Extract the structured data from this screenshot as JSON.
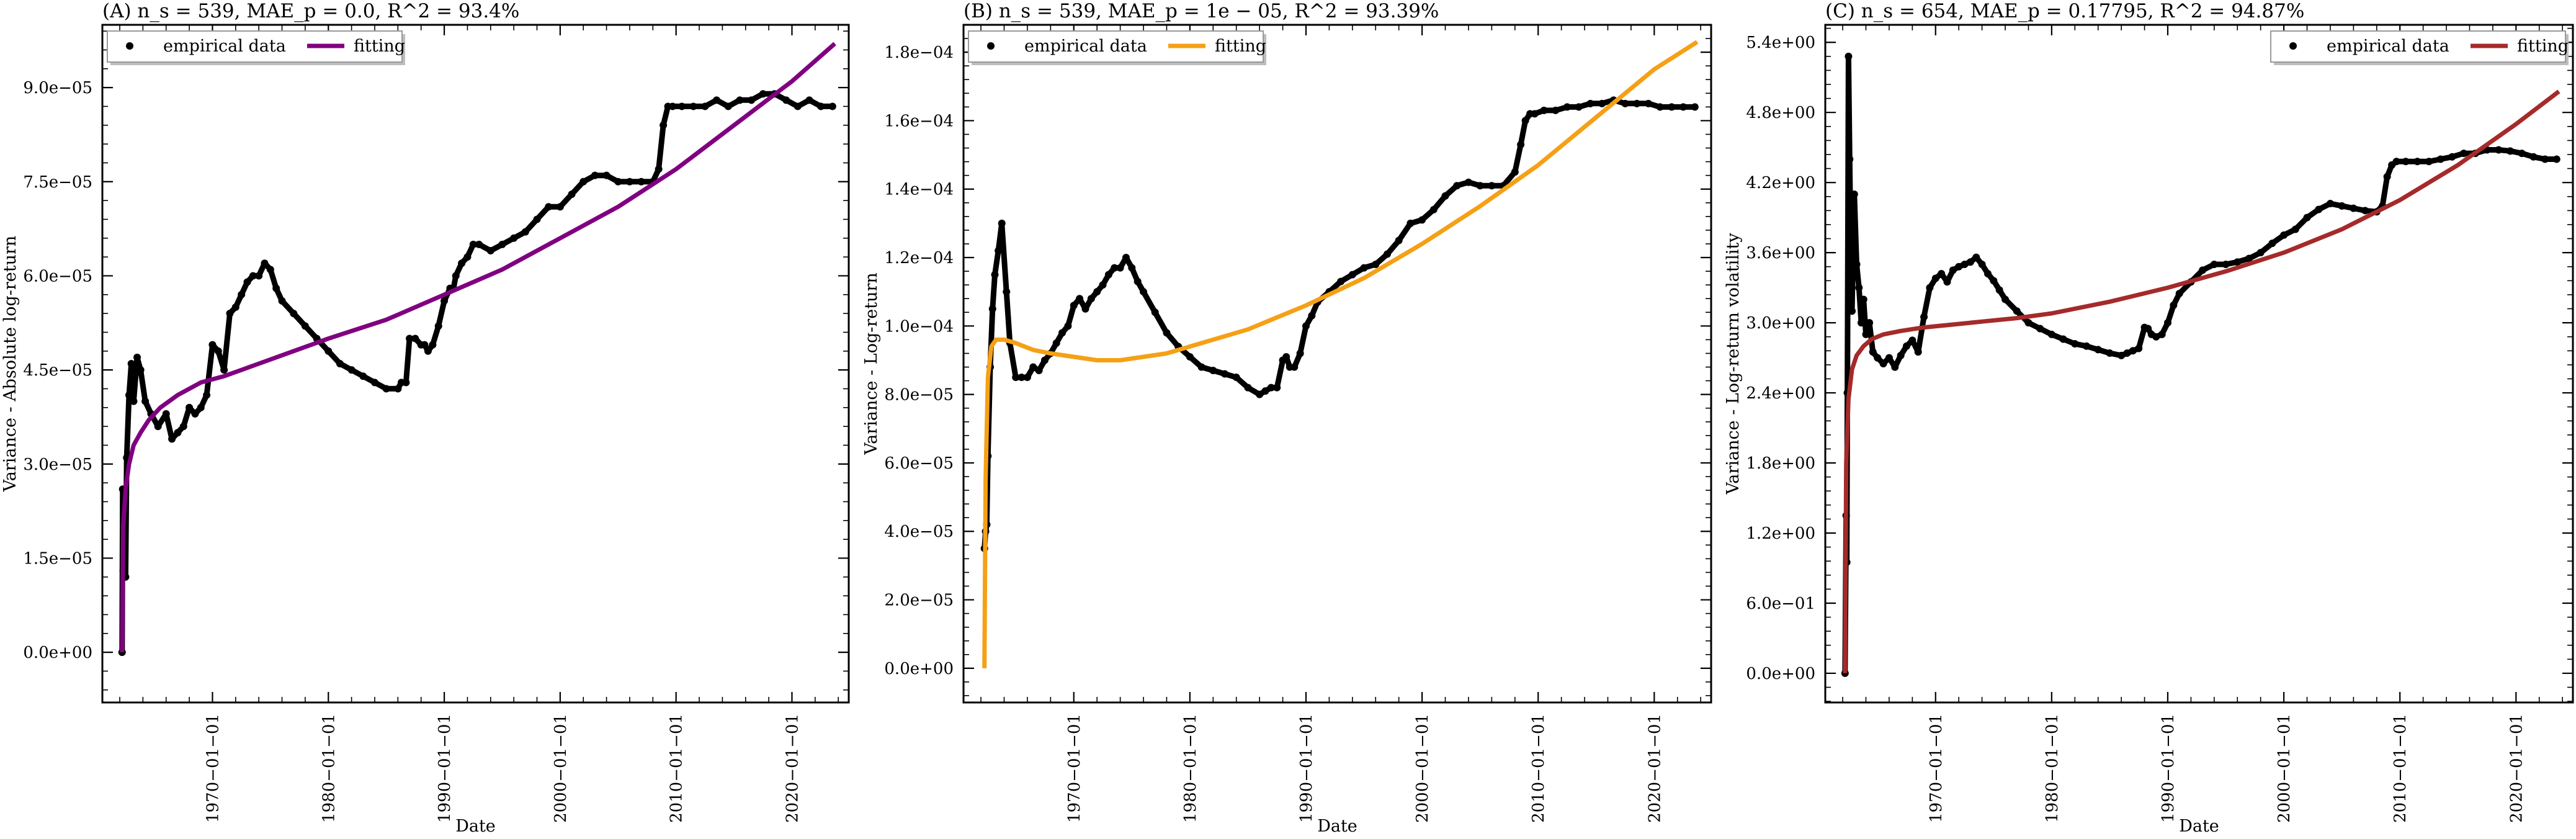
{
  "chart_data": [
    {
      "type": "scatter",
      "title": "(A) n_s = 539, MAE_p = 0.0, R^2 = 93.4%",
      "xlabel": "Date",
      "ylabel": "Variance - Absolute log-return",
      "xlim": [
        1960.5,
        2024.9
      ],
      "ylim": [
        -8e-06,
        0.0001
      ],
      "xticks": [
        1970,
        1980,
        1990,
        2000,
        2010,
        2020
      ],
      "xtick_labels": [
        "1970−01−01",
        "1980−01−01",
        "1990−01−01",
        "2000−01−01",
        "2010−01−01",
        "2020−01−01"
      ],
      "yticks": [
        0,
        1.5e-05,
        3e-05,
        4.5e-05,
        6e-05,
        7.5e-05,
        9e-05
      ],
      "ytick_labels": [
        "0.0e+00",
        "1.5e−05",
        "3.0e−05",
        "4.5e−05",
        "6.0e−05",
        "7.5e−05",
        "9.0e−05"
      ],
      "legend": {
        "position": "upper-left",
        "entries": [
          "empirical data",
          "fitting"
        ]
      },
      "fit_color": "#800080",
      "series": [
        {
          "name": "empirical data",
          "kind": "markers",
          "x": [
            1962.2,
            1962.25,
            1962.3,
            1962.4,
            1962.5,
            1962.6,
            1962.8,
            1963.0,
            1963.2,
            1963.5,
            1963.8,
            1964.2,
            1964.7,
            1965.3,
            1966.0,
            1966.5,
            1967.0,
            1967.5,
            1968.0,
            1968.5,
            1969.0,
            1969.5,
            1970.0,
            1970.5,
            1971.0,
            1971.5,
            1972.0,
            1972.5,
            1973.0,
            1973.5,
            1974.0,
            1974.5,
            1975.0,
            1975.5,
            1976.0,
            1977.0,
            1978.0,
            1979.0,
            1980.0,
            1981.0,
            1982.0,
            1983.0,
            1984.0,
            1985.0,
            1986.0,
            1986.3,
            1986.7,
            1987.0,
            1987.5,
            1988.0,
            1988.3,
            1988.6,
            1989.0,
            1989.5,
            1990.0,
            1990.5,
            1990.8,
            1991.0,
            1991.5,
            1992.0,
            1992.5,
            1993.0,
            1994.0,
            1995.0,
            1996.0,
            1997.0,
            1998.0,
            1999.0,
            2000.0,
            2001.0,
            2002.0,
            2003.0,
            2004.0,
            2005.0,
            2006.0,
            2007.0,
            2008.0,
            2008.5,
            2008.9,
            2009.3,
            2009.7,
            2010.5,
            2011.5,
            2012.5,
            2013.5,
            2014.5,
            2015.5,
            2016.5,
            2017.5,
            2018.5,
            2019.5,
            2020.5,
            2021.5,
            2022.5,
            2023.5
          ],
          "y": [
            0.0,
            2.6e-05,
            1.3e-05,
            2.2e-05,
            1.2e-05,
            3.1e-05,
            4.1e-05,
            4.6e-05,
            4e-05,
            4.7e-05,
            4.5e-05,
            4e-05,
            3.8e-05,
            3.6e-05,
            3.8e-05,
            3.4e-05,
            3.5e-05,
            3.6e-05,
            3.9e-05,
            3.8e-05,
            3.9e-05,
            4.1e-05,
            4.9e-05,
            4.8e-05,
            4.5e-05,
            5.4e-05,
            5.5e-05,
            5.7e-05,
            5.9e-05,
            6e-05,
            6e-05,
            6.2e-05,
            6.1e-05,
            5.8e-05,
            5.6e-05,
            5.4e-05,
            5.2e-05,
            5e-05,
            4.8e-05,
            4.6e-05,
            4.5e-05,
            4.4e-05,
            4.3e-05,
            4.2e-05,
            4.2e-05,
            4.3e-05,
            4.3e-05,
            5e-05,
            5e-05,
            4.9e-05,
            4.9e-05,
            4.8e-05,
            4.9e-05,
            5.2e-05,
            5.6e-05,
            5.8e-05,
            5.8e-05,
            6e-05,
            6.2e-05,
            6.3e-05,
            6.5e-05,
            6.5e-05,
            6.4e-05,
            6.5e-05,
            6.6e-05,
            6.7e-05,
            6.9e-05,
            7.1e-05,
            7.1e-05,
            7.3e-05,
            7.5e-05,
            7.6e-05,
            7.6e-05,
            7.5e-05,
            7.5e-05,
            7.5e-05,
            7.5e-05,
            7.7e-05,
            8.4e-05,
            8.7e-05,
            8.7e-05,
            8.7e-05,
            8.7e-05,
            8.7e-05,
            8.8e-05,
            8.7e-05,
            8.8e-05,
            8.8e-05,
            8.9e-05,
            8.9e-05,
            8.8e-05,
            8.7e-05,
            8.8e-05,
            8.7e-05,
            8.7e-05
          ]
        },
        {
          "name": "fitting",
          "kind": "line",
          "x": [
            1962.2,
            1962.3,
            1962.5,
            1962.8,
            1963.2,
            1963.8,
            1964.5,
            1965.5,
            1967.0,
            1969.0,
            1971.0,
            1974.0,
            1977.0,
            1980.0,
            1985.0,
            1990.0,
            1995.0,
            2000.0,
            2005.0,
            2010.0,
            2015.0,
            2020.0,
            2023.7
          ],
          "y": [
            0.0,
            2e-05,
            2.6e-05,
            3e-05,
            3.3e-05,
            3.5e-05,
            3.7e-05,
            3.9e-05,
            4.1e-05,
            4.3e-05,
            4.4e-05,
            4.6e-05,
            4.8e-05,
            5e-05,
            5.3e-05,
            5.7e-05,
            6.1e-05,
            6.6e-05,
            7.1e-05,
            7.7e-05,
            8.4e-05,
            9.1e-05,
            9.7e-05
          ]
        }
      ]
    },
    {
      "type": "scatter",
      "title": "(B) n_s = 539, MAE_p = 1e − 05, R^2 = 93.39%",
      "xlabel": "Date",
      "ylabel": "Variance - Log-return",
      "xlim": [
        1960.5,
        2024.9
      ],
      "ylim": [
        -1e-05,
        0.000188
      ],
      "xticks": [
        1970,
        1980,
        1990,
        2000,
        2010,
        2020
      ],
      "xtick_labels": [
        "1970−01−01",
        "1980−01−01",
        "1990−01−01",
        "2000−01−01",
        "2010−01−01",
        "2020−01−01"
      ],
      "yticks": [
        0,
        2e-05,
        4e-05,
        6e-05,
        8e-05,
        0.0001,
        0.00012,
        0.00014,
        0.00016,
        0.00018
      ],
      "ytick_labels": [
        "0.0e+00",
        "2.0e−05",
        "4.0e−05",
        "6.0e−05",
        "8.0e−05",
        "1.0e−04",
        "1.2e−04",
        "1.4e−04",
        "1.6e−04",
        "1.8e−04"
      ],
      "legend": {
        "position": "upper-left",
        "entries": [
          "empirical data",
          "fitting"
        ]
      },
      "fit_color": "#f5a015",
      "series": [
        {
          "name": "empirical data",
          "kind": "markers",
          "x": [
            1962.3,
            1962.4,
            1962.5,
            1962.6,
            1962.8,
            1963.0,
            1963.2,
            1963.5,
            1963.8,
            1964.2,
            1964.5,
            1965.0,
            1965.5,
            1966.0,
            1966.5,
            1967.0,
            1967.5,
            1968.0,
            1968.5,
            1969.0,
            1969.5,
            1970.0,
            1970.5,
            1971.0,
            1971.5,
            1972.0,
            1972.5,
            1973.0,
            1973.5,
            1974.0,
            1974.5,
            1975.0,
            1975.5,
            1976.0,
            1977.0,
            1978.0,
            1979.0,
            1980.0,
            1981.0,
            1982.0,
            1983.0,
            1984.0,
            1985.0,
            1986.0,
            1986.5,
            1987.0,
            1987.5,
            1988.0,
            1988.3,
            1988.6,
            1989.0,
            1989.5,
            1990.0,
            1990.5,
            1991.0,
            1992.0,
            1993.0,
            1994.0,
            1995.0,
            1996.0,
            1997.0,
            1998.0,
            1999.0,
            2000.0,
            2001.0,
            2002.0,
            2003.0,
            2004.0,
            2005.0,
            2006.0,
            2007.0,
            2008.0,
            2008.5,
            2008.9,
            2009.3,
            2009.7,
            2010.5,
            2011.5,
            2012.5,
            2013.5,
            2014.5,
            2015.5,
            2016.5,
            2017.5,
            2018.5,
            2019.5,
            2020.5,
            2021.5,
            2022.5,
            2023.5
          ],
          "y": [
            3.5e-05,
            4e-05,
            4.2e-05,
            6.2e-05,
            8.8e-05,
            0.000105,
            0.000115,
            0.000122,
            0.00013,
            0.00011,
            9.5e-05,
            8.5e-05,
            8.5e-05,
            8.5e-05,
            8.8e-05,
            8.7e-05,
            9e-05,
            9.2e-05,
            9.5e-05,
            9.8e-05,
            0.0001,
            0.000106,
            0.000108,
            0.000105,
            0.000108,
            0.00011,
            0.000112,
            0.000115,
            0.000117,
            0.000117,
            0.00012,
            0.000117,
            0.000113,
            0.00011,
            0.000104,
            9.8e-05,
            9.4e-05,
            9.1e-05,
            8.8e-05,
            8.7e-05,
            8.6e-05,
            8.5e-05,
            8.2e-05,
            8e-05,
            8.1e-05,
            8.2e-05,
            8.2e-05,
            9e-05,
            9.1e-05,
            8.8e-05,
            8.8e-05,
            9.2e-05,
            0.0001,
            0.000103,
            0.000107,
            0.00011,
            0.000113,
            0.000115,
            0.000117,
            0.000118,
            0.000121,
            0.000125,
            0.00013,
            0.000131,
            0.000134,
            0.000138,
            0.000141,
            0.000142,
            0.000141,
            0.000141,
            0.000141,
            0.000145,
            0.000153,
            0.00016,
            0.000162,
            0.000162,
            0.000163,
            0.000163,
            0.000164,
            0.000164,
            0.000165,
            0.000165,
            0.000166,
            0.000165,
            0.000165,
            0.000165,
            0.000164,
            0.000164,
            0.000164,
            0.000164
          ]
        },
        {
          "name": "fitting",
          "kind": "line",
          "x": [
            1962.3,
            1962.4,
            1962.6,
            1962.9,
            1963.3,
            1964.0,
            1965.0,
            1966.5,
            1968.0,
            1970.0,
            1972.0,
            1974.0,
            1976.0,
            1978.0,
            1980.0,
            1985.0,
            1990.0,
            1995.0,
            2000.0,
            2005.0,
            2010.0,
            2015.0,
            2020.0,
            2023.7
          ],
          "y": [
            0.0,
            5.5e-05,
            8.5e-05,
            9.4e-05,
            9.6e-05,
            9.6e-05,
            9.5e-05,
            9.3e-05,
            9.2e-05,
            9.1e-05,
            9e-05,
            9e-05,
            9.1e-05,
            9.2e-05,
            9.4e-05,
            9.9e-05,
            0.000106,
            0.000114,
            0.000124,
            0.000135,
            0.000147,
            0.000161,
            0.000175,
            0.000183
          ]
        }
      ]
    },
    {
      "type": "scatter",
      "title": "(C) n_s = 654, MAE_p = 0.17795, R^2 = 94.87%",
      "xlabel": "Date",
      "ylabel": "Variance - Log-return volatility",
      "xlim": [
        1960.5,
        2024.9
      ],
      "ylim": [
        -0.25,
        5.55
      ],
      "xticks": [
        1970,
        1980,
        1990,
        2000,
        2010,
        2020
      ],
      "xtick_labels": [
        "1970−01−01",
        "1980−01−01",
        "1990−01−01",
        "2000−01−01",
        "2010−01−01",
        "2020−01−01"
      ],
      "yticks": [
        0,
        0.6,
        1.2,
        1.8,
        2.4,
        3.0,
        3.6,
        4.2,
        4.8,
        5.4
      ],
      "ytick_labels": [
        "0.0e+00",
        "6.0e−01",
        "1.2e+00",
        "1.8e+00",
        "2.4e+00",
        "3.0e+00",
        "3.6e+00",
        "4.2e+00",
        "4.8e+00",
        "5.4e+00"
      ],
      "legend": {
        "position": "upper-right",
        "entries": [
          "empirical data",
          "fitting"
        ]
      },
      "fit_color": "#a52a2a",
      "series": [
        {
          "name": "empirical data",
          "kind": "markers",
          "x": [
            1962.2,
            1962.3,
            1962.35,
            1962.4,
            1962.5,
            1962.6,
            1962.7,
            1962.8,
            1963.0,
            1963.2,
            1963.4,
            1963.6,
            1963.8,
            1964.0,
            1964.3,
            1964.6,
            1965.0,
            1965.5,
            1966.0,
            1966.5,
            1967.0,
            1967.5,
            1968.0,
            1968.5,
            1969.0,
            1969.5,
            1970.0,
            1970.5,
            1971.0,
            1971.5,
            1972.0,
            1972.5,
            1973.0,
            1973.5,
            1974.0,
            1974.5,
            1975.0,
            1975.5,
            1976.0,
            1977.0,
            1978.0,
            1979.0,
            1980.0,
            1981.0,
            1982.0,
            1983.0,
            1984.0,
            1985.0,
            1986.0,
            1986.5,
            1987.0,
            1987.5,
            1988.0,
            1988.3,
            1988.6,
            1989.0,
            1989.5,
            1990.0,
            1990.5,
            1991.0,
            1992.0,
            1993.0,
            1994.0,
            1995.0,
            1996.0,
            1997.0,
            1998.0,
            1999.0,
            2000.0,
            2001.0,
            2002.0,
            2003.0,
            2004.0,
            2005.0,
            2006.0,
            2007.0,
            2008.0,
            2008.5,
            2008.9,
            2009.3,
            2009.7,
            2010.5,
            2011.5,
            2012.5,
            2013.5,
            2014.5,
            2015.5,
            2016.5,
            2017.5,
            2018.5,
            2019.5,
            2020.5,
            2021.5,
            2022.5,
            2023.5
          ],
          "y": [
            0.0,
            1.35,
            0.95,
            2.4,
            5.28,
            4.4,
            3.6,
            3.1,
            4.1,
            3.5,
            3.3,
            3.0,
            3.2,
            2.9,
            3.0,
            2.75,
            2.7,
            2.65,
            2.7,
            2.62,
            2.72,
            2.8,
            2.85,
            2.75,
            3.05,
            3.3,
            3.38,
            3.42,
            3.35,
            3.45,
            3.48,
            3.5,
            3.52,
            3.56,
            3.5,
            3.42,
            3.36,
            3.28,
            3.2,
            3.1,
            3.0,
            2.95,
            2.9,
            2.86,
            2.82,
            2.8,
            2.77,
            2.74,
            2.72,
            2.74,
            2.76,
            2.78,
            2.96,
            2.95,
            2.9,
            2.88,
            2.9,
            3.0,
            3.15,
            3.25,
            3.35,
            3.45,
            3.5,
            3.5,
            3.52,
            3.55,
            3.6,
            3.68,
            3.75,
            3.8,
            3.9,
            3.97,
            4.02,
            4.0,
            3.98,
            3.96,
            3.95,
            4.0,
            4.25,
            4.35,
            4.38,
            4.38,
            4.38,
            4.38,
            4.4,
            4.42,
            4.45,
            4.45,
            4.48,
            4.48,
            4.47,
            4.45,
            4.42,
            4.4,
            4.4
          ]
        },
        {
          "name": "fitting",
          "kind": "line",
          "x": [
            1962.2,
            1962.3,
            1962.5,
            1962.8,
            1963.2,
            1963.8,
            1964.5,
            1965.5,
            1967.0,
            1969.0,
            1971.0,
            1974.0,
            1977.0,
            1980.0,
            1985.0,
            1990.0,
            1995.0,
            2000.0,
            2005.0,
            2010.0,
            2015.0,
            2020.0,
            2023.7
          ],
          "y": [
            0.0,
            1.8,
            2.35,
            2.6,
            2.72,
            2.8,
            2.86,
            2.9,
            2.93,
            2.96,
            2.98,
            3.01,
            3.04,
            3.08,
            3.18,
            3.3,
            3.44,
            3.6,
            3.8,
            4.05,
            4.35,
            4.7,
            4.98
          ]
        }
      ]
    }
  ]
}
